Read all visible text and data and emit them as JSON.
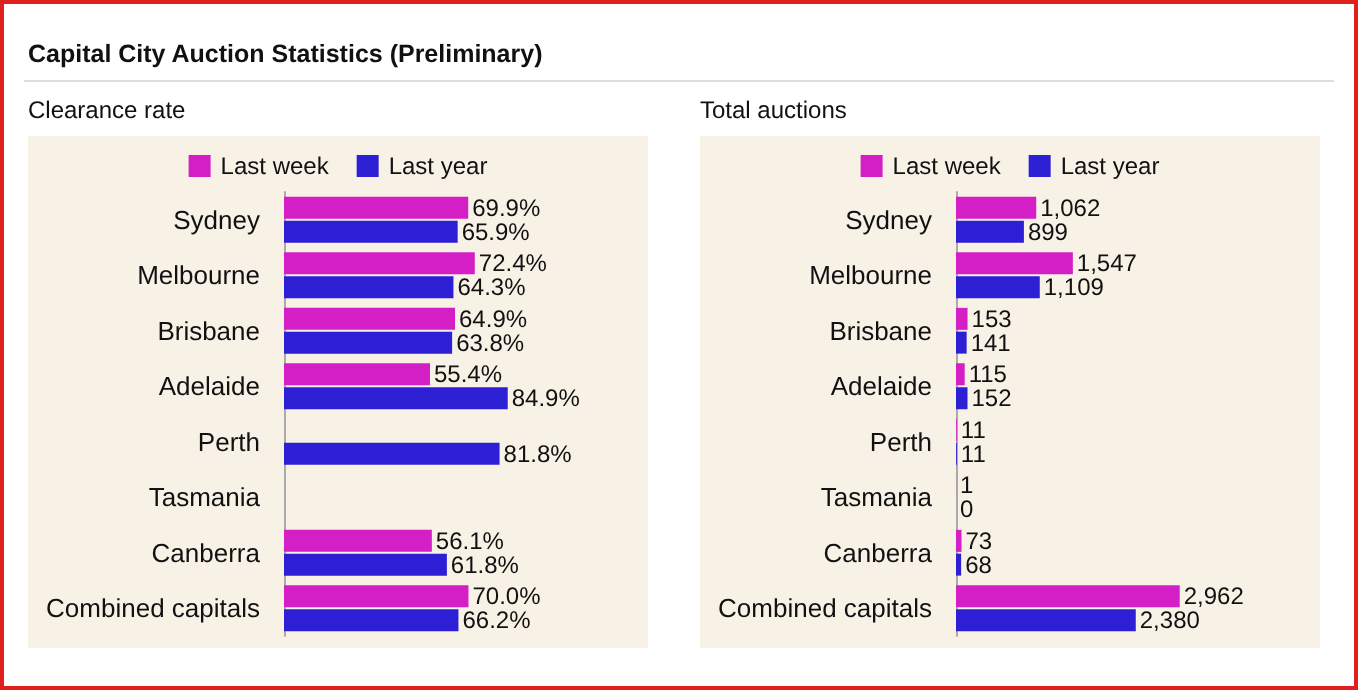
{
  "chart_data": [
    {
      "type": "bar",
      "title": "Capital City Auction Statistics (Preliminary)",
      "subtitle": "Clearance rate",
      "orientation": "horizontal",
      "legend": "top",
      "categories": [
        "Sydney",
        "Melbourne",
        "Brisbane",
        "Adelaide",
        "Perth",
        "Tasmania",
        "Canberra",
        "Combined capitals"
      ],
      "series": [
        {
          "name": "Last week",
          "color": "#d41fc6",
          "values": [
            69.9,
            72.4,
            64.9,
            55.4,
            null,
            null,
            56.1,
            70.0
          ],
          "value_labels": [
            "69.9%",
            "72.4%",
            "64.9%",
            "55.4%",
            null,
            null,
            "56.1%",
            "70.0%"
          ]
        },
        {
          "name": "Last year",
          "color": "#2d1fd4",
          "values": [
            65.9,
            64.3,
            63.8,
            84.9,
            81.8,
            null,
            61.8,
            66.2
          ],
          "value_labels": [
            "65.9%",
            "64.3%",
            "63.8%",
            "84.9%",
            "81.8%",
            null,
            "61.8%",
            "66.2%"
          ]
        }
      ]
    },
    {
      "type": "bar",
      "title": "Total auctions",
      "orientation": "horizontal",
      "legend": "top",
      "categories": [
        "Sydney",
        "Melbourne",
        "Brisbane",
        "Adelaide",
        "Perth",
        "Tasmania",
        "Canberra",
        "Combined capitals"
      ],
      "series": [
        {
          "name": "Last week",
          "color": "#d41fc6",
          "values": [
            1062,
            1547,
            153,
            115,
            11,
            1,
            73,
            2962
          ],
          "value_labels": [
            "1,062",
            "1,547",
            "153",
            "115",
            "11",
            "1",
            "73",
            "2,962"
          ]
        },
        {
          "name": "Last year",
          "color": "#2d1fd4",
          "values": [
            899,
            1109,
            141,
            152,
            11,
            0,
            68,
            2380
          ],
          "value_labels": [
            "899",
            "1,109",
            "141",
            "152",
            "11",
            "0",
            "68",
            "2,380"
          ]
        }
      ]
    }
  ]
}
